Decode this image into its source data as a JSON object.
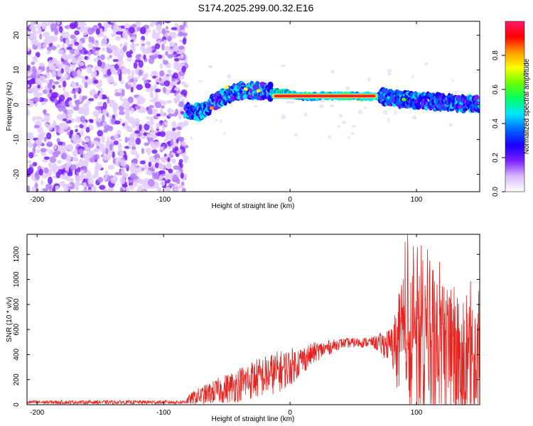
{
  "title": "S174.2025.299.00.32.E16",
  "chart_data": [
    {
      "type": "heatmap",
      "xlabel": "Height of straight line (km)",
      "ylabel": "Frequency (Hz)",
      "xlim": [
        -208,
        150
      ],
      "ylim": [
        -25,
        24
      ],
      "xticks": [
        -200,
        -100,
        0,
        100
      ],
      "yticks": [
        -20,
        -10,
        0,
        10,
        20
      ],
      "colorbar": {
        "label": "Normalized spectral amplitude",
        "range": [
          0,
          1
        ],
        "ticks": [
          0.0,
          0.2,
          0.4,
          0.6,
          0.8
        ],
        "tick_labels": [
          "0.0",
          "0.2",
          "0.4",
          "0.6",
          "0.8"
        ],
        "colors": [
          "#ffffff",
          "#d9b8ff",
          "#7a1fff",
          "#1a00ff",
          "#0066ff",
          "#00e5ff",
          "#00ff66",
          "#66ff00",
          "#ffff00",
          "#ff9900",
          "#ff0000",
          "#ff1a6a"
        ]
      },
      "features": {
        "noise_region_km": [
          -208,
          -82
        ],
        "signal_band": [
          {
            "x": -82,
            "freq": -2
          },
          {
            "x": -70,
            "freq": -2
          },
          {
            "x": -55,
            "freq": 2
          },
          {
            "x": -40,
            "freq": 4
          },
          {
            "x": -20,
            "freq": 4
          },
          {
            "x": 0,
            "freq": 3
          },
          {
            "x": 10,
            "freq": 2.5
          },
          {
            "x": 70,
            "freq": 2.5
          },
          {
            "x": 90,
            "freq": 1.5
          },
          {
            "x": 110,
            "freq": 1
          },
          {
            "x": 130,
            "freq": 0.5
          },
          {
            "x": 150,
            "freq": 0
          }
        ],
        "peak_segment_km": [
          -15,
          70
        ],
        "peak_freq": 2.5
      }
    },
    {
      "type": "line",
      "xlabel": "Height of straight line (km)",
      "ylabel": "SNR (10 * v/v)",
      "xlim": [
        -208,
        150
      ],
      "ylim": [
        0,
        1360
      ],
      "xticks": [
        -200,
        -100,
        0,
        100
      ],
      "yticks": [
        0,
        200,
        400,
        600,
        800,
        1000,
        1200
      ],
      "color": "#e8231f",
      "series": [
        {
          "name": "SNR",
          "envelope": [
            {
              "x": -208,
              "mean": 20,
              "spread": 15
            },
            {
              "x": -85,
              "mean": 20,
              "spread": 15
            },
            {
              "x": -75,
              "mean": 60,
              "spread": 60
            },
            {
              "x": -50,
              "mean": 130,
              "spread": 120
            },
            {
              "x": -30,
              "mean": 200,
              "spread": 160
            },
            {
              "x": -10,
              "mean": 260,
              "spread": 170
            },
            {
              "x": 0,
              "mean": 300,
              "spread": 150
            },
            {
              "x": 20,
              "mean": 420,
              "spread": 80
            },
            {
              "x": 40,
              "mean": 490,
              "spread": 40
            },
            {
              "x": 65,
              "mean": 500,
              "spread": 40
            },
            {
              "x": 80,
              "mean": 470,
              "spread": 150
            },
            {
              "x": 90,
              "mean": 480,
              "spread": 600
            },
            {
              "x": 110,
              "mean": 420,
              "spread": 600
            },
            {
              "x": 150,
              "mean": 300,
              "spread": 450
            }
          ],
          "max_peak": {
            "x": 93,
            "y": 1360
          }
        }
      ]
    }
  ]
}
